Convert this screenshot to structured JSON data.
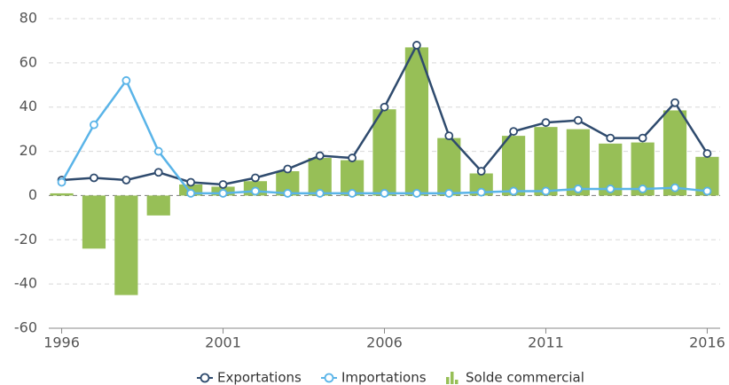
{
  "chart_data": {
    "type": "combo",
    "x": [
      1996,
      1997,
      1998,
      1999,
      2000,
      2001,
      2002,
      2003,
      2004,
      2005,
      2006,
      2007,
      2008,
      2009,
      2010,
      2011,
      2012,
      2013,
      2014,
      2015,
      2016
    ],
    "series": [
      {
        "name": "Solde commercial",
        "type": "bar",
        "color": "#97bf57",
        "values": [
          1,
          -24,
          -45,
          -9,
          5,
          4,
          6.5,
          11,
          17,
          16,
          39,
          67,
          26,
          10,
          27,
          31,
          30,
          23.5,
          24,
          38.5,
          17.5
        ]
      },
      {
        "name": "Exportations",
        "type": "line",
        "color": "#2f4b6e",
        "values": [
          7,
          8,
          7,
          10.5,
          6,
          5,
          8,
          12,
          18,
          17,
          40,
          68,
          27,
          11,
          29,
          33,
          34,
          26,
          26,
          42,
          19
        ]
      },
      {
        "name": "Importations",
        "type": "line",
        "color": "#5ab4e8",
        "values": [
          6,
          32,
          52,
          20,
          1,
          1,
          2,
          1,
          1,
          1,
          1,
          1,
          1,
          1.5,
          2,
          2,
          3,
          3,
          3,
          3.5,
          2
        ]
      }
    ],
    "legend_order": [
      1,
      2,
      0
    ],
    "xlim": [
      1995.6,
      2016.4
    ],
    "xticks": [
      1996,
      2001,
      2006,
      2011,
      2016
    ],
    "ylim": [
      -60,
      80
    ],
    "yticks": [
      -60,
      -40,
      -20,
      0,
      20,
      40,
      60,
      80
    ],
    "grid": true,
    "legend": "bottom"
  }
}
